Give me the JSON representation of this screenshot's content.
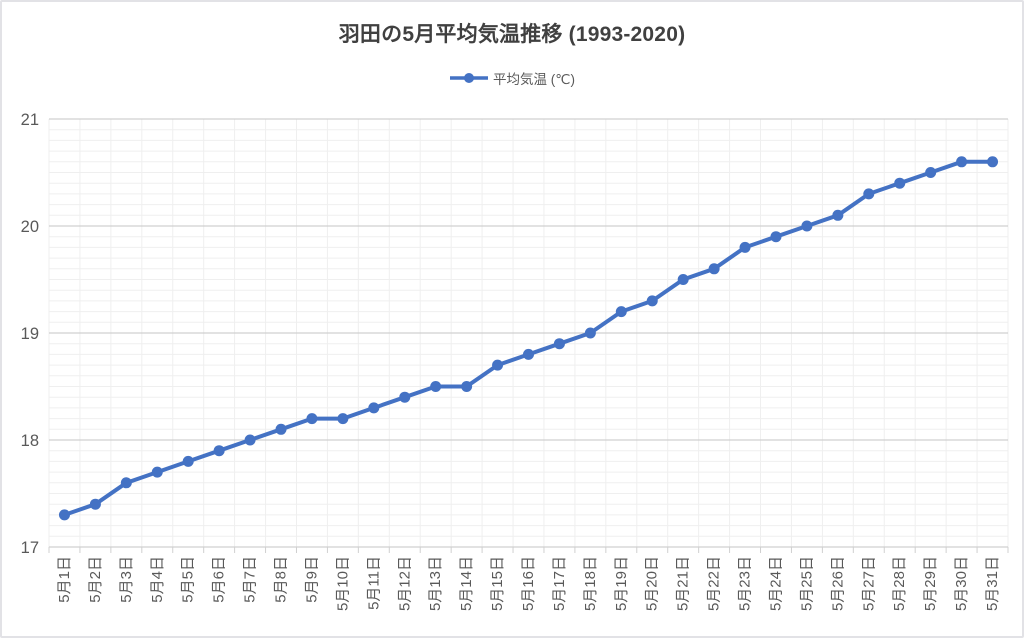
{
  "chart_data": {
    "type": "line",
    "title": "羽田の5月平均気温推移 (1993-2020)",
    "categories": [
      "5月1日",
      "5月2日",
      "5月3日",
      "5月4日",
      "5月5日",
      "5月6日",
      "5月7日",
      "5月8日",
      "5月9日",
      "5月10日",
      "5月11日",
      "5月12日",
      "5月13日",
      "5月14日",
      "5月15日",
      "5月16日",
      "5月17日",
      "5月18日",
      "5月19日",
      "5月20日",
      "5月21日",
      "5月22日",
      "5月23日",
      "5月24日",
      "5月25日",
      "5月26日",
      "5月27日",
      "5月28日",
      "5月29日",
      "5月30日",
      "5月31日"
    ],
    "series": [
      {
        "name": "平均気温 (℃)",
        "values": [
          17.3,
          17.4,
          17.6,
          17.7,
          17.8,
          17.9,
          18.0,
          18.1,
          18.2,
          18.2,
          18.3,
          18.4,
          18.5,
          18.5,
          18.7,
          18.8,
          18.9,
          19.0,
          19.2,
          19.3,
          19.5,
          19.6,
          19.8,
          19.9,
          20.0,
          20.1,
          20.3,
          20.4,
          20.5,
          20.6,
          20.6
        ]
      }
    ],
    "xlabel": "",
    "ylabel": "",
    "ylim": [
      17,
      21
    ],
    "yticks": [
      17,
      18,
      19,
      20,
      21
    ],
    "minor_y_step": 0.1,
    "grid": "major+minor",
    "legend_position": "top-center",
    "colors": {
      "series": "#4472C4",
      "major_grid": "#d0d0d0",
      "minor_grid": "#efefef",
      "vertical_grid": "#efefef",
      "tick_mark": "#d0d0d0",
      "axis_text": "#595959",
      "title_text": "#404040",
      "background": "#ffffff",
      "frame_border": "#e2e2e6"
    }
  }
}
